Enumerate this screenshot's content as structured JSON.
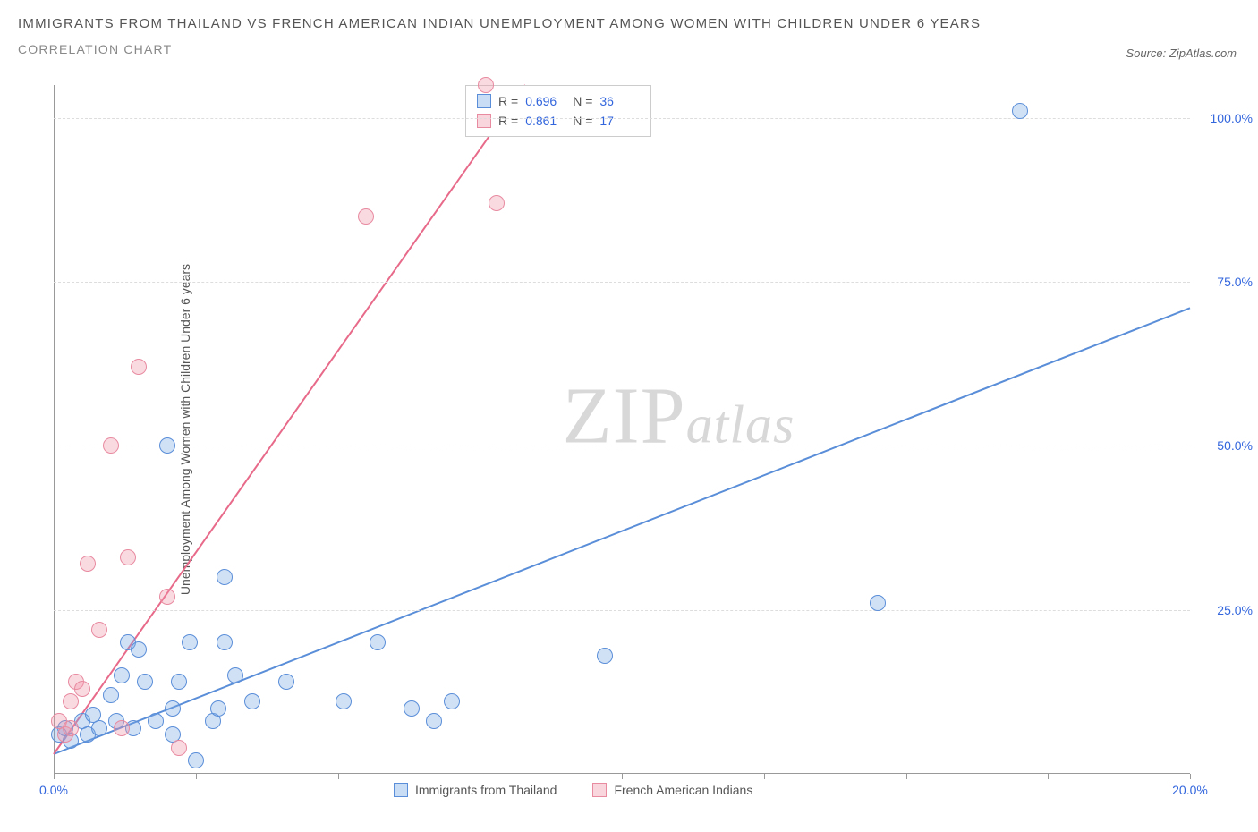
{
  "title": "IMMIGRANTS FROM THAILAND VS FRENCH AMERICAN INDIAN UNEMPLOYMENT AMONG WOMEN WITH CHILDREN UNDER 6 YEARS",
  "subtitle": "CORRELATION CHART",
  "source": "Source: ZipAtlas.com",
  "y_axis_label": "Unemployment Among Women with Children Under 6 years",
  "watermark": {
    "zip": "ZIP",
    "atlas": "atlas"
  },
  "chart": {
    "type": "scatter-correlation",
    "xlim": [
      0,
      20
    ],
    "ylim": [
      0,
      105
    ],
    "x_ticks": [
      0,
      2.5,
      5,
      7.5,
      10,
      12.5,
      15,
      17.5,
      20
    ],
    "x_tick_labels": {
      "0": "0.0%",
      "20": "20.0%"
    },
    "y_ticks": [
      25,
      50,
      75,
      100
    ],
    "y_tick_labels": [
      "25.0%",
      "50.0%",
      "75.0%",
      "100.0%"
    ],
    "grid_color": "#dddddd",
    "axis_color": "#999999",
    "background_color": "#ffffff",
    "series": [
      {
        "name": "Immigrants from Thailand",
        "color": "#5a8ed8",
        "fill": "rgba(120,170,230,0.35)",
        "R": "0.696",
        "N": "36",
        "regression": {
          "x1": 0,
          "y1": 3,
          "x2": 20,
          "y2": 71
        },
        "points": [
          [
            0.1,
            6
          ],
          [
            0.2,
            7
          ],
          [
            0.3,
            5
          ],
          [
            0.5,
            8
          ],
          [
            0.6,
            6
          ],
          [
            0.7,
            9
          ],
          [
            0.8,
            7
          ],
          [
            1.0,
            12
          ],
          [
            1.1,
            8
          ],
          [
            1.2,
            15
          ],
          [
            1.3,
            20
          ],
          [
            1.4,
            7
          ],
          [
            1.5,
            19
          ],
          [
            1.6,
            14
          ],
          [
            1.8,
            8
          ],
          [
            2.0,
            50
          ],
          [
            2.1,
            6
          ],
          [
            2.1,
            10
          ],
          [
            2.2,
            14
          ],
          [
            2.4,
            20
          ],
          [
            2.8,
            8
          ],
          [
            2.9,
            10
          ],
          [
            3.0,
            20
          ],
          [
            3.0,
            30
          ],
          [
            3.2,
            15
          ],
          [
            3.5,
            11
          ],
          [
            4.1,
            14
          ],
          [
            5.1,
            11
          ],
          [
            5.7,
            20
          ],
          [
            6.3,
            10
          ],
          [
            6.7,
            8
          ],
          [
            7.0,
            11
          ],
          [
            9.7,
            18
          ],
          [
            14.5,
            26
          ],
          [
            17.0,
            101
          ],
          [
            2.5,
            2
          ]
        ]
      },
      {
        "name": "French American Indians",
        "color": "#e86a8a",
        "fill": "rgba(240,150,170,0.35)",
        "R": "0.861",
        "N": "17",
        "regression": {
          "x1": 0,
          "y1": 3,
          "x2": 8.3,
          "y2": 105
        },
        "points": [
          [
            0.1,
            8
          ],
          [
            0.2,
            6
          ],
          [
            0.3,
            7
          ],
          [
            0.4,
            14
          ],
          [
            0.5,
            13
          ],
          [
            0.6,
            32
          ],
          [
            0.8,
            22
          ],
          [
            1.0,
            50
          ],
          [
            1.2,
            7
          ],
          [
            1.3,
            33
          ],
          [
            1.5,
            62
          ],
          [
            2.0,
            27
          ],
          [
            2.2,
            4
          ],
          [
            5.5,
            85
          ],
          [
            7.6,
            105
          ],
          [
            7.8,
            87
          ],
          [
            0.3,
            11
          ]
        ]
      }
    ]
  },
  "legend_stats_labels": {
    "R": "R =",
    "N": "N ="
  },
  "text_colors": {
    "title": "#555555",
    "subtitle": "#888888",
    "axis_value": "#3366dd",
    "label": "#555555"
  }
}
